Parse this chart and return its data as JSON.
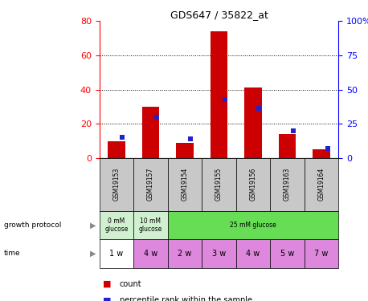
{
  "title": "GDS647 / 35822_at",
  "samples": [
    "GSM19153",
    "GSM19157",
    "GSM19154",
    "GSM19155",
    "GSM19156",
    "GSM19163",
    "GSM19164"
  ],
  "count_values": [
    10,
    30,
    9,
    74,
    41,
    14,
    5
  ],
  "percentile_values": [
    15,
    30,
    14,
    43,
    36,
    20,
    7
  ],
  "left_ylim": [
    0,
    80
  ],
  "right_ylim": [
    0,
    100
  ],
  "left_yticks": [
    0,
    20,
    40,
    60,
    80
  ],
  "right_yticks": [
    0,
    25,
    50,
    75,
    100
  ],
  "right_yticklabels": [
    "0",
    "25",
    "50",
    "75",
    "100%"
  ],
  "bar_color": "#cc0000",
  "dot_color": "#2222cc",
  "growth_protocol_spans": [
    {
      "label": "0 mM\nglucose",
      "start": 0,
      "end": 1,
      "color": "#d0f0d0"
    },
    {
      "label": "10 mM\nglucose",
      "start": 1,
      "end": 2,
      "color": "#d0f0d0"
    },
    {
      "label": "25 mM glucose",
      "start": 2,
      "end": 7,
      "color": "#66dd55"
    }
  ],
  "time_row": [
    "1 w",
    "4 w",
    "2 w",
    "3 w",
    "4 w",
    "5 w",
    "7 w"
  ],
  "time_colors": [
    "#ffffff",
    "#dd88dd",
    "#dd88dd",
    "#dd88dd",
    "#dd88dd",
    "#dd88dd",
    "#dd88dd"
  ],
  "sample_label_bg": "#c8c8c8",
  "legend_count_color": "#cc0000",
  "legend_dot_color": "#2222cc"
}
